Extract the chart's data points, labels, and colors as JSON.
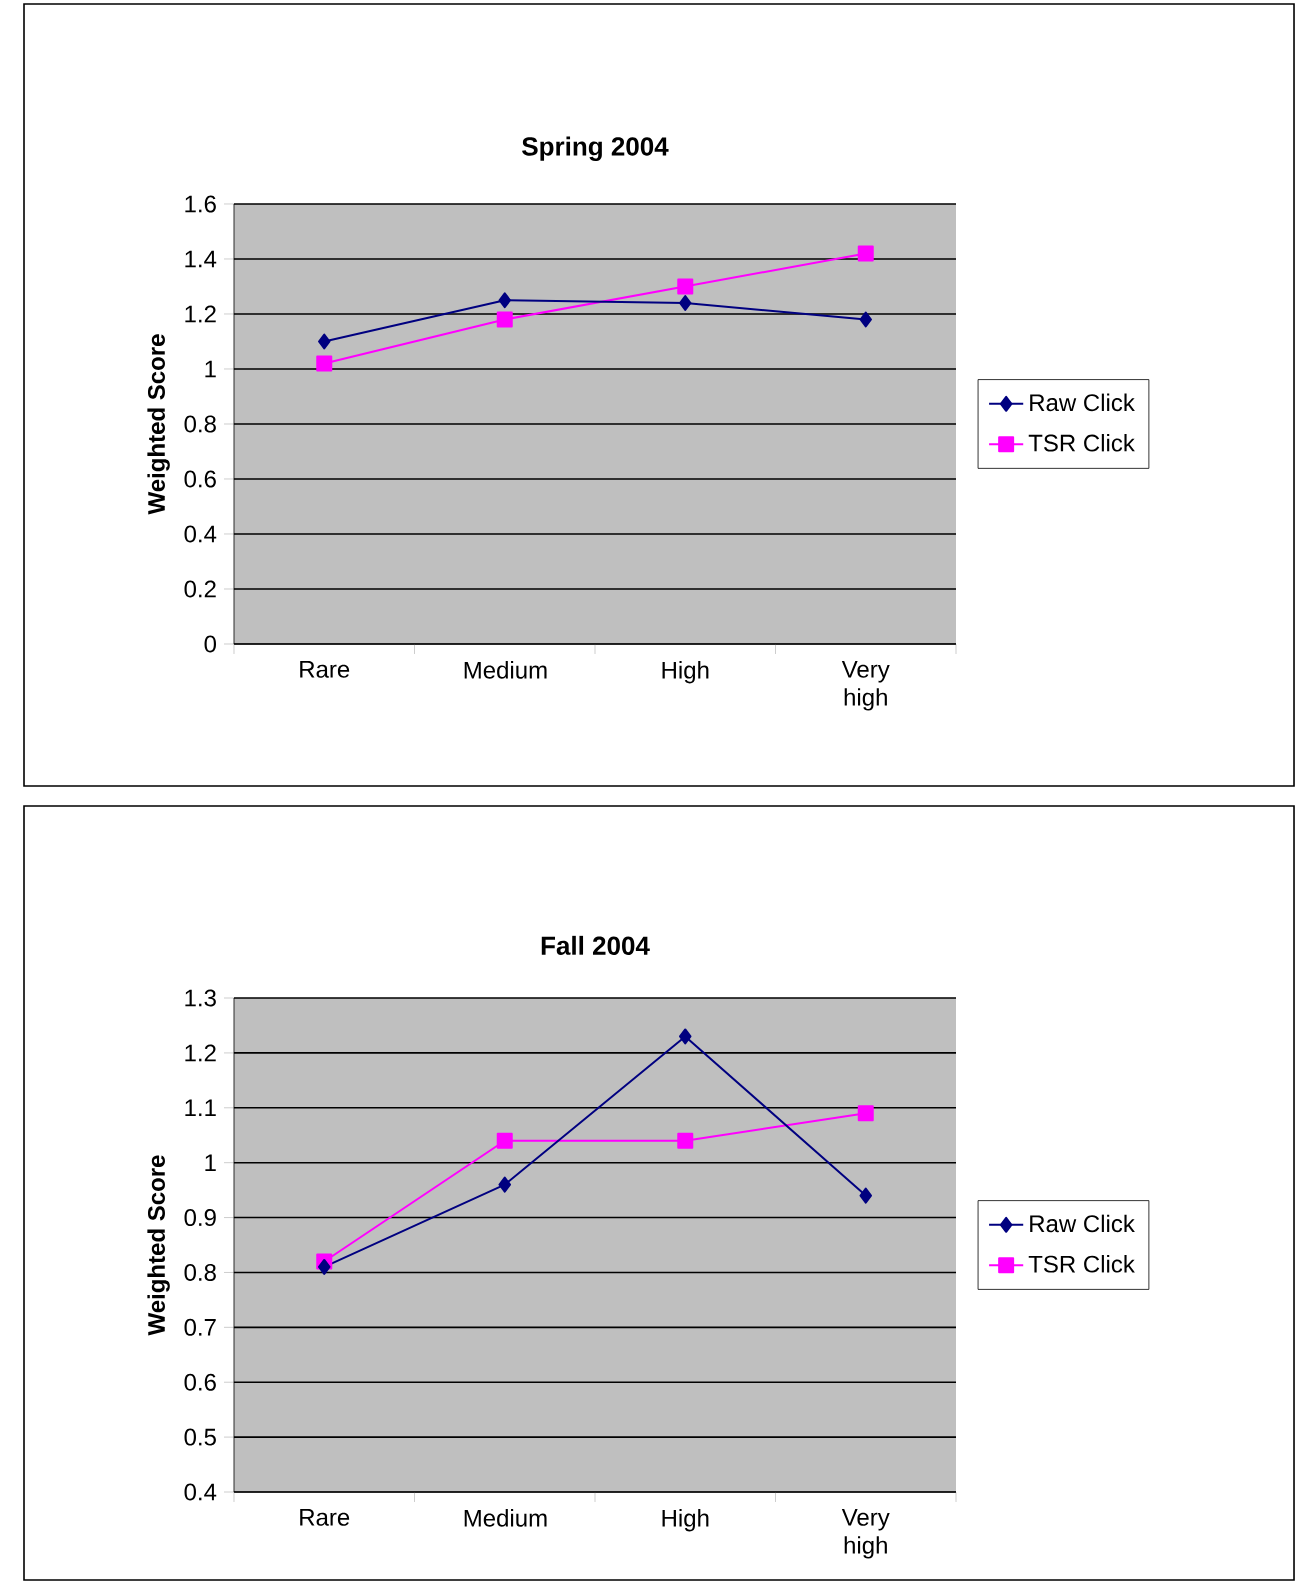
{
  "chart_data": [
    {
      "type": "line",
      "title": "Spring 2004",
      "ylabel": "Weighted Score",
      "categories": [
        "Rare",
        "Medium",
        "High",
        "Very high"
      ],
      "series": [
        {
          "name": "Raw Click",
          "color": "#000080",
          "marker": "diamond",
          "values": [
            1.1,
            1.25,
            1.24,
            1.18
          ]
        },
        {
          "name": "TSR Click",
          "color": "#ff00ff",
          "marker": "square",
          "values": [
            1.02,
            1.18,
            1.3,
            1.42
          ]
        }
      ],
      "ylim": [
        0,
        1.6
      ],
      "yticks": [
        0,
        0.2,
        0.4,
        0.6,
        0.8,
        1,
        1.2,
        1.4,
        1.6
      ],
      "grid": "y",
      "legend": "right"
    },
    {
      "type": "line",
      "title": "Fall 2004",
      "ylabel": "Weighted Score",
      "categories": [
        "Rare",
        "Medium",
        "High",
        "Very high"
      ],
      "series": [
        {
          "name": "Raw Click",
          "color": "#000080",
          "marker": "diamond",
          "values": [
            0.81,
            0.96,
            1.23,
            0.94
          ]
        },
        {
          "name": "TSR Click",
          "color": "#ff00ff",
          "marker": "square",
          "values": [
            0.82,
            1.04,
            1.04,
            1.09
          ]
        }
      ],
      "ylim": [
        0.4,
        1.3
      ],
      "yticks": [
        0.4,
        0.5,
        0.6,
        0.7,
        0.8,
        0.9,
        1,
        1.1,
        1.2,
        1.3
      ],
      "grid": "y",
      "legend": "right"
    }
  ]
}
